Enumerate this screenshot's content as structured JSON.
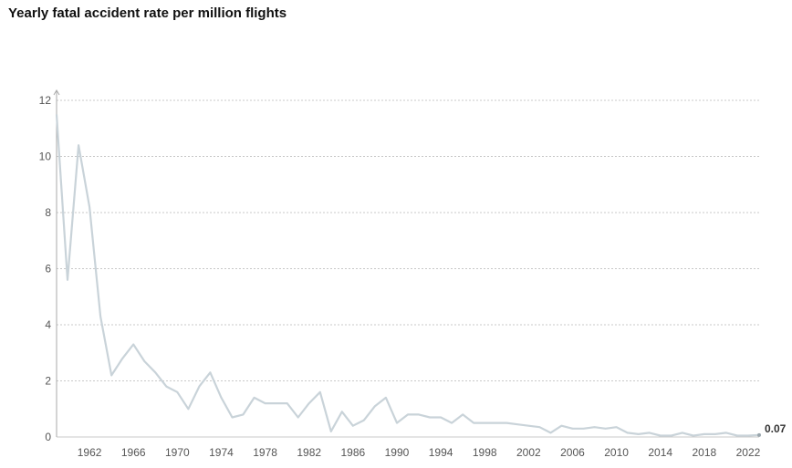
{
  "title": "Yearly fatal accident rate per million flights",
  "colors": {
    "line": "#c9d3d9",
    "grid": "#c8c8c8",
    "axis": "#aaaaaa"
  },
  "chart_data": {
    "type": "line",
    "title": "Yearly fatal accident rate per million flights",
    "xlabel": "",
    "ylabel": "",
    "xlim": [
      1959,
      2023
    ],
    "ylim": [
      0,
      12
    ],
    "yticks": [
      0,
      2,
      4,
      6,
      8,
      10,
      12
    ],
    "xticks": [
      1962,
      1966,
      1970,
      1974,
      1978,
      1982,
      1986,
      1990,
      1994,
      1998,
      2002,
      2006,
      2010,
      2014,
      2018,
      2022
    ],
    "grid": true,
    "end_label": "0.07",
    "series": [
      {
        "x": [
          1959,
          1960,
          1961,
          1962,
          1963,
          1964,
          1965,
          1966,
          1967,
          1968,
          1969,
          1970,
          1971,
          1972,
          1973,
          1974,
          1975,
          1976,
          1977,
          1978,
          1979,
          1980,
          1981,
          1982,
          1983,
          1984,
          1985,
          1986,
          1987,
          1988,
          1989,
          1990,
          1991,
          1992,
          1993,
          1994,
          1995,
          1996,
          1997,
          1998,
          1999,
          2000,
          2001,
          2002,
          2003,
          2004,
          2005,
          2006,
          2007,
          2008,
          2009,
          2010,
          2011,
          2012,
          2013,
          2014,
          2015,
          2016,
          2017,
          2018,
          2019,
          2020,
          2021,
          2022,
          2023
        ],
        "y": [
          11.5,
          5.6,
          10.4,
          8.2,
          4.3,
          2.2,
          2.8,
          3.3,
          2.7,
          2.3,
          1.8,
          1.6,
          1.0,
          1.8,
          2.3,
          1.4,
          0.7,
          0.8,
          1.4,
          1.2,
          1.2,
          1.2,
          0.7,
          1.2,
          1.6,
          0.2,
          0.9,
          0.4,
          0.6,
          1.1,
          1.4,
          0.5,
          0.8,
          0.8,
          0.7,
          0.7,
          0.5,
          0.8,
          0.5,
          0.5,
          0.5,
          0.5,
          0.45,
          0.4,
          0.35,
          0.15,
          0.4,
          0.3,
          0.3,
          0.35,
          0.3,
          0.35,
          0.15,
          0.1,
          0.15,
          0.05,
          0.05,
          0.15,
          0.05,
          0.1,
          0.1,
          0.15,
          0.05,
          0.05,
          0.07
        ]
      }
    ]
  }
}
